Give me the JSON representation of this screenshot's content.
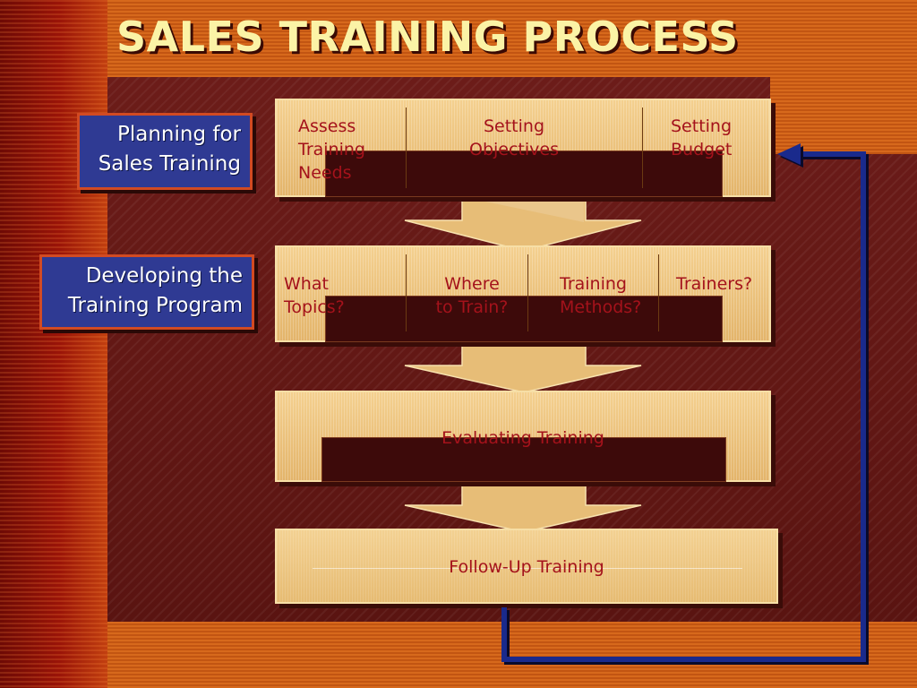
{
  "title": "SALES TRAINING PROCESS",
  "side_labels": {
    "planning": [
      "Planning for",
      "Sales Training"
    ],
    "developing": [
      "Developing the",
      "Training Program"
    ]
  },
  "stages": {
    "planning_row": [
      [
        "Assess",
        "Training",
        "Needs"
      ],
      [
        "Setting",
        "Objectives"
      ],
      [
        "Setting",
        "Budget"
      ]
    ],
    "developing_row": [
      [
        "What",
        "Topics?"
      ],
      [
        "Where",
        "to Train?"
      ],
      [
        "Training",
        "Methods?"
      ],
      [
        "Trainers?"
      ]
    ],
    "evaluating": "Evaluating Training",
    "follow_up": "Follow-Up Training"
  },
  "colors": {
    "label_fill": "#2f3a93",
    "label_border": "#d24a22",
    "stage_text": "#a4121b",
    "loop_arrow": "#1a2a8c",
    "title_text": "#fbf3a6"
  }
}
